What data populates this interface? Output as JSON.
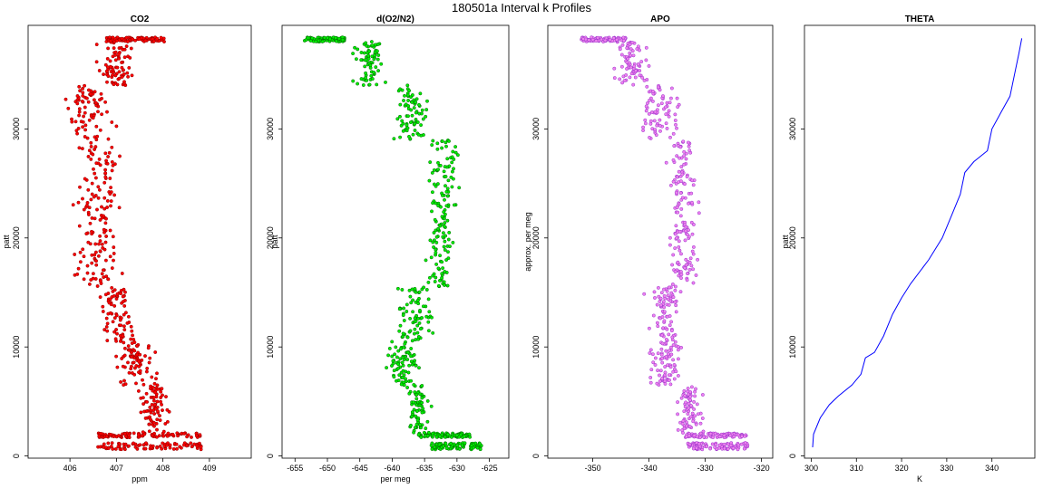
{
  "figure_title": "180501a   Interval k Profiles",
  "chart_data": [
    {
      "type": "scatter",
      "title": "CO2",
      "xlabel": "ppm",
      "ylabel": "patt",
      "xlim": [
        405.1,
        409.9
      ],
      "ylim": [
        -200,
        39500
      ],
      "xticks": [
        406,
        407,
        408,
        409
      ],
      "yticks": [
        0,
        10000,
        20000,
        30000
      ],
      "marker_fill": "#ff0000",
      "marker_edge": "#8b0000",
      "line_color": "",
      "legs": [
        {
          "alt": [
            600,
            1200
          ],
          "center": 407.7,
          "spread": 1.4,
          "kind": "flat"
        },
        {
          "alt": [
            1700,
            2100
          ],
          "center": 407.7,
          "spread": 1.4,
          "kind": "flat"
        },
        {
          "alt": [
            2100,
            6500
          ],
          "center": 407.8,
          "spread": 0.5
        },
        {
          "alt": [
            6500,
            10500
          ],
          "center": 407.4,
          "spread": 0.7
        },
        {
          "alt": [
            10500,
            15500
          ],
          "center": 407.0,
          "spread": 0.6
        },
        {
          "alt": [
            15500,
            22000
          ],
          "center": 406.6,
          "spread": 0.7
        },
        {
          "alt": [
            22000,
            29000
          ],
          "center": 406.6,
          "spread": 0.8
        },
        {
          "alt": [
            29000,
            34000
          ],
          "center": 406.4,
          "spread": 0.8
        },
        {
          "alt": [
            34000,
            38000
          ],
          "center": 407.0,
          "spread": 0.6
        },
        {
          "alt": [
            38000,
            38400
          ],
          "center": 407.4,
          "spread": 0.8,
          "kind": "flat"
        }
      ]
    },
    {
      "type": "scatter",
      "title": "d(O2/N2)",
      "xlabel": "per meg",
      "ylabel": "patt",
      "xlim": [
        -657,
        -622
      ],
      "ylim": [
        -200,
        39500
      ],
      "xticks": [
        -655,
        -650,
        -645,
        -640,
        -635,
        -630,
        -625
      ],
      "yticks": [
        0,
        10000,
        20000,
        30000
      ],
      "marker_fill": "#00ee00",
      "marker_edge": "#006400",
      "line_color": "",
      "legs": [
        {
          "alt": [
            600,
            1200
          ],
          "center": -630.0,
          "spread": 5.0,
          "kind": "flat"
        },
        {
          "alt": [
            1700,
            2100
          ],
          "center": -632.0,
          "spread": 5.0,
          "kind": "flat"
        },
        {
          "alt": [
            2100,
            6500
          ],
          "center": -636.0,
          "spread": 3.0
        },
        {
          "alt": [
            6500,
            10500
          ],
          "center": -638.5,
          "spread": 4.0
        },
        {
          "alt": [
            10500,
            15500
          ],
          "center": -636.5,
          "spread": 4.5
        },
        {
          "alt": [
            15500,
            22000
          ],
          "center": -632.5,
          "spread": 3.5
        },
        {
          "alt": [
            22000,
            29000
          ],
          "center": -632.0,
          "spread": 4.0
        },
        {
          "alt": [
            29000,
            34000
          ],
          "center": -637.0,
          "spread": 4.0
        },
        {
          "alt": [
            34000,
            38000
          ],
          "center": -643.5,
          "spread": 4.0
        },
        {
          "alt": [
            38000,
            38400
          ],
          "center": -650.5,
          "spread": 4.0,
          "kind": "flat"
        }
      ]
    },
    {
      "type": "scatter",
      "title": "APO",
      "xlabel": "",
      "ylabel": "approx. per meg",
      "xlim": [
        -358,
        -318
      ],
      "ylim": [
        -200,
        39500
      ],
      "xticks": [
        -350,
        -340,
        -330,
        -320
      ],
      "yticks": [
        0,
        10000,
        20000,
        30000
      ],
      "marker_fill": "#ee82ee",
      "marker_edge": "#9932cc",
      "line_color": "",
      "legs": [
        {
          "alt": [
            600,
            1200
          ],
          "center": -328.0,
          "spread": 7.0,
          "kind": "flat"
        },
        {
          "alt": [
            1700,
            2100
          ],
          "center": -328.0,
          "spread": 7.0,
          "kind": "flat"
        },
        {
          "alt": [
            2100,
            6500
          ],
          "center": -333.0,
          "spread": 4.0
        },
        {
          "alt": [
            6500,
            10500
          ],
          "center": -337.0,
          "spread": 5.0
        },
        {
          "alt": [
            10500,
            15500
          ],
          "center": -337.0,
          "spread": 5.0
        },
        {
          "alt": [
            15500,
            22000
          ],
          "center": -334.0,
          "spread": 4.0
        },
        {
          "alt": [
            22000,
            29000
          ],
          "center": -334.0,
          "spread": 4.5
        },
        {
          "alt": [
            29000,
            34000
          ],
          "center": -338.0,
          "spread": 5.0
        },
        {
          "alt": [
            34000,
            38000
          ],
          "center": -343.0,
          "spread": 5.0
        },
        {
          "alt": [
            38000,
            38400
          ],
          "center": -348.0,
          "spread": 5.0,
          "kind": "flat"
        }
      ]
    },
    {
      "type": "line",
      "title": "THETA",
      "xlabel": "K",
      "ylabel": "patt",
      "xlim": [
        298.5,
        349.5
      ],
      "ylim": [
        -200,
        39500
      ],
      "xticks": [
        300,
        310,
        320,
        330,
        340
      ],
      "yticks": [
        0,
        10000,
        20000,
        30000
      ],
      "marker_fill": "",
      "marker_edge": "",
      "line_color": "#0000ff",
      "line_points": [
        [
          300.3,
          800
        ],
        [
          300.5,
          2000
        ],
        [
          302,
          3500
        ],
        [
          304,
          4700
        ],
        [
          306,
          5500
        ],
        [
          309,
          6500
        ],
        [
          311,
          7500
        ],
        [
          312,
          9000
        ],
        [
          314,
          9500
        ],
        [
          316,
          11000
        ],
        [
          318,
          13000
        ],
        [
          320,
          14500
        ],
        [
          322,
          15800
        ],
        [
          326,
          18000
        ],
        [
          329,
          20000
        ],
        [
          331,
          22000
        ],
        [
          333,
          24000
        ],
        [
          334,
          26000
        ],
        [
          336,
          27000
        ],
        [
          339,
          28000
        ],
        [
          340,
          30000
        ],
        [
          342,
          31500
        ],
        [
          344,
          33000
        ],
        [
          345,
          35000
        ],
        [
          346,
          37000
        ],
        [
          346.6,
          38300
        ]
      ]
    }
  ]
}
